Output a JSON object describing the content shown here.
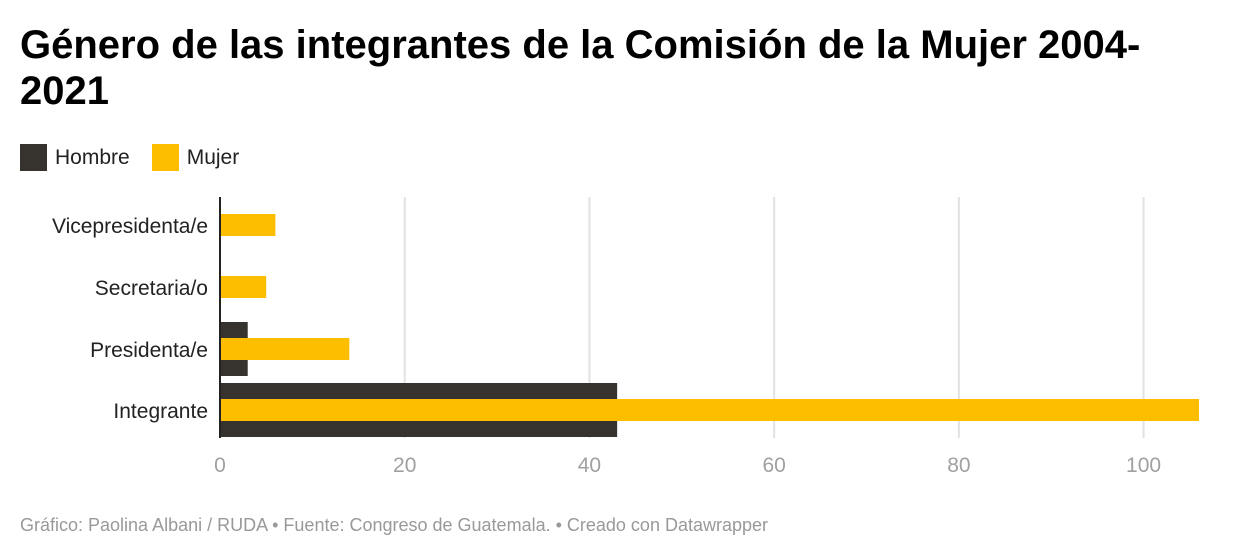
{
  "chart_data": {
    "type": "bar",
    "orientation": "horizontal",
    "title": "Género de las integrantes de la Comisión de la Mujer 2004-2021",
    "categories": [
      "Vicepresidenta/e",
      "Secretaria/o",
      "Presidenta/e",
      "Integrante"
    ],
    "series": [
      {
        "name": "Hombre",
        "color": "#36322d",
        "values": [
          0,
          0,
          3,
          43
        ]
      },
      {
        "name": "Mujer",
        "color": "#fdbe00",
        "values": [
          6,
          5,
          14,
          106
        ]
      }
    ],
    "xlim": [
      0,
      106
    ],
    "xticks": [
      0,
      20,
      40,
      60,
      80,
      100
    ],
    "grid": true,
    "legend_position": "top-left",
    "xlabel": "",
    "ylabel": ""
  },
  "footer": "Gráfico: Paolina Albani / RUDA • Fuente: Congreso de Guatemala. • Creado con Datawrapper"
}
